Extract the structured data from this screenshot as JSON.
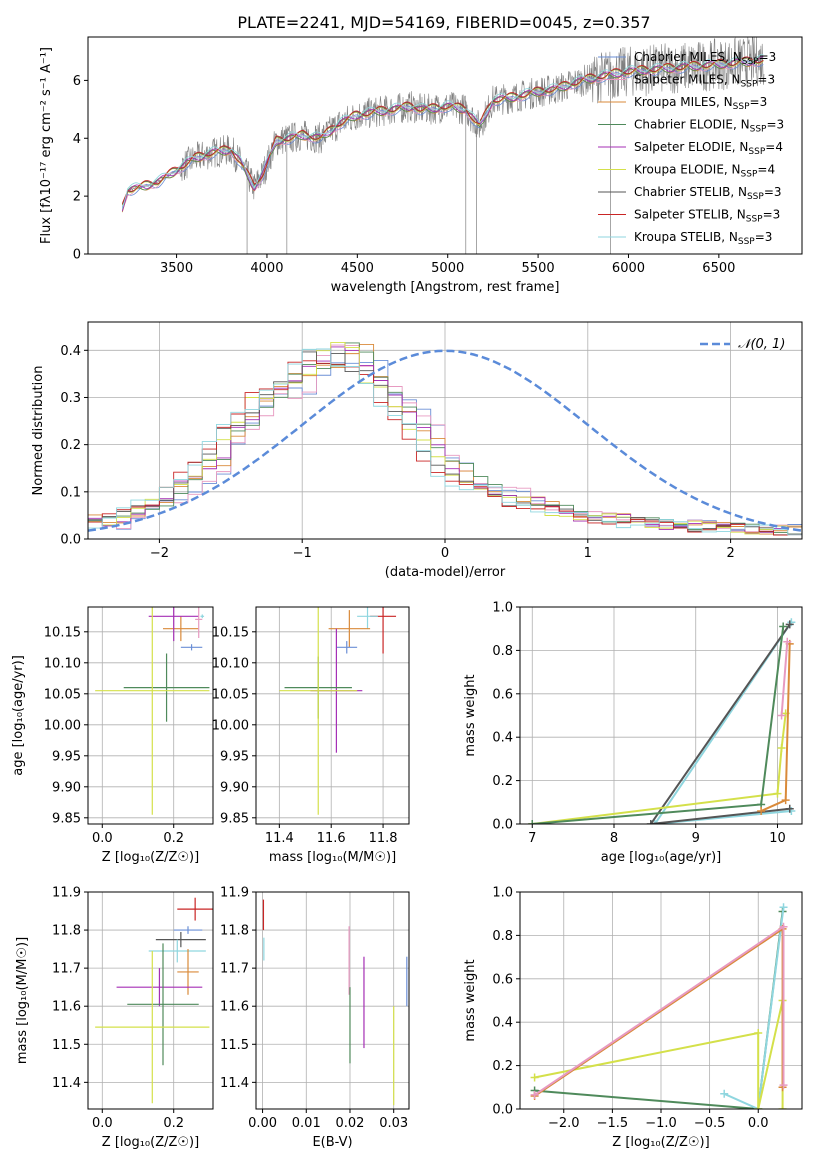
{
  "figure_title": "PLATE=2241, MJD=54169, FIBERID=0045, z=0.357",
  "colors": {
    "chabrier_miles": "#6b8fd6",
    "salpeter_miles": "#e79ac1",
    "kroupa_miles": "#d98a3a",
    "chabrier_elodie": "#4f8a5b",
    "salpeter_elodie": "#a52fb5",
    "kroupa_elodie": "#d4e04a",
    "chabrier_stelib": "#555555",
    "salpeter_stelib": "#c92525",
    "kroupa_stelib": "#8fd6df",
    "data": "#808080",
    "normal": "#5b8bd9"
  },
  "legend_spectrum": [
    {
      "prefix": "Chabrier MILES, N",
      "sub": "SSP",
      "suffix": "=3",
      "color_key": "chabrier_miles"
    },
    {
      "prefix": "Salpeter MILES, N",
      "sub": "SSP",
      "suffix": "=3",
      "color_key": "salpeter_miles"
    },
    {
      "prefix": "Kroupa MILES, N",
      "sub": "SSP",
      "suffix": "=3",
      "color_key": "kroupa_miles"
    },
    {
      "prefix": "Chabrier ELODIE, N",
      "sub": "SSP",
      "suffix": "=3",
      "color_key": "chabrier_elodie"
    },
    {
      "prefix": "Salpeter ELODIE, N",
      "sub": "SSP",
      "suffix": "=4",
      "color_key": "salpeter_elodie"
    },
    {
      "prefix": "Kroupa ELODIE, N",
      "sub": "SSP",
      "suffix": "=4",
      "color_key": "kroupa_elodie"
    },
    {
      "prefix": "Chabrier STELIB, N",
      "sub": "SSP",
      "suffix": "=3",
      "color_key": "chabrier_stelib"
    },
    {
      "prefix": "Salpeter STELIB, N",
      "sub": "SSP",
      "suffix": "=3",
      "color_key": "salpeter_stelib"
    },
    {
      "prefix": "Kroupa STELIB, N",
      "sub": "SSP",
      "suffix": "=3",
      "color_key": "kroupa_stelib"
    }
  ],
  "legend_normal": "𝒩(0, 1)",
  "chart_data": [
    {
      "id": "spectrum",
      "type": "line",
      "xlabel": "wavelength [Angstrom, rest frame]",
      "ylabel": "Flux [fλ10⁻¹⁷ erg cm⁻² s⁻¹ A⁻¹]",
      "xlim": [
        3010,
        6960
      ],
      "ylim": [
        0,
        7.5
      ],
      "xticks": [
        3500,
        4000,
        4500,
        5000,
        5500,
        6000,
        6500
      ],
      "yticks": [
        0,
        2,
        4,
        6
      ],
      "grid": false,
      "legend": "upper right",
      "continuum": [
        [
          3200,
          1.6
        ],
        [
          3230,
          2.2
        ],
        [
          3300,
          2.3
        ],
        [
          3400,
          2.5
        ],
        [
          3500,
          2.9
        ],
        [
          3600,
          3.3
        ],
        [
          3700,
          3.5
        ],
        [
          3800,
          3.6
        ],
        [
          3850,
          3.2
        ],
        [
          3930,
          2.3
        ],
        [
          3980,
          2.8
        ],
        [
          4050,
          3.9
        ],
        [
          4200,
          4.1
        ],
        [
          4300,
          4.0
        ],
        [
          4400,
          4.5
        ],
        [
          4500,
          4.8
        ],
        [
          4600,
          4.9
        ],
        [
          4700,
          5.0
        ],
        [
          4800,
          5.1
        ],
        [
          4850,
          5.0
        ],
        [
          4900,
          5.0
        ],
        [
          5000,
          5.1
        ],
        [
          5100,
          5.0
        ],
        [
          5175,
          4.4
        ],
        [
          5250,
          5.3
        ],
        [
          5350,
          5.4
        ],
        [
          5500,
          5.6
        ],
        [
          5600,
          5.7
        ],
        [
          5750,
          6.0
        ],
        [
          5900,
          6.2
        ],
        [
          6000,
          6.3
        ],
        [
          6200,
          6.4
        ],
        [
          6400,
          6.5
        ],
        [
          6600,
          6.6
        ],
        [
          6750,
          6.7
        ]
      ]
    },
    {
      "id": "residuals",
      "type": "histogram",
      "xlabel": "(data-model)/error",
      "ylabel": "Normed distribution",
      "xlim": [
        -2.5,
        2.5
      ],
      "ylim": [
        0,
        0.46
      ],
      "xticks": [
        -2,
        -1,
        0,
        1,
        2
      ],
      "yticks": [
        0.0,
        0.1,
        0.2,
        0.3,
        0.4
      ],
      "grid": true,
      "legend": "upper right",
      "bin_width": 0.1,
      "mean_profile": [
        0.04,
        0.035,
        0.03,
        0.04,
        0.045,
        0.055,
        0.06,
        0.07,
        0.07,
        0.075,
        0.08,
        0.095,
        0.11,
        0.12,
        0.135,
        0.15,
        0.15,
        0.17,
        0.19,
        0.23,
        0.235,
        0.24,
        0.26,
        0.29,
        0.3,
        0.31,
        0.32,
        0.33,
        0.33,
        0.34,
        0.36,
        0.37,
        0.38,
        0.385,
        0.38,
        0.4,
        0.38,
        0.38,
        0.37,
        0.35,
        0.33,
        0.31,
        0.3,
        0.28,
        0.26,
        0.24,
        0.23,
        0.2,
        0.18,
        0.16,
        0.15,
        0.13,
        0.12,
        0.11,
        0.11,
        0.1,
        0.1,
        0.095,
        0.08,
        0.075,
        0.08,
        0.075,
        0.07,
        0.065,
        0.06,
        0.06,
        0.055,
        0.05,
        0.048,
        0.047,
        0.045,
        0.04,
        0.042,
        0.04,
        0.038,
        0.035,
        0.037,
        0.035,
        0.033,
        0.03,
        0.032,
        0.03,
        0.03,
        0.028,
        0.027,
        0.025,
        0.026,
        0.025,
        0.024,
        0.023,
        0.022,
        0.022,
        0.021,
        0.02,
        0.02,
        0.02,
        0.019,
        0.018,
        0.018,
        0.017
      ],
      "normal_curve": {
        "mu": 0,
        "sigma": 1
      }
    },
    {
      "id": "age-vs-z",
      "type": "scatter",
      "xlabel": "Z [log₁₀(Z/Z☉)]",
      "ylabel": "age  [log₁₀(age/yr)]",
      "xlim": [
        -0.04,
        0.31
      ],
      "ylim": [
        9.84,
        10.19
      ],
      "xticks": [
        0.0,
        0.2
      ],
      "yticks": [
        9.85,
        9.9,
        9.95,
        10.0,
        10.05,
        10.1,
        10.15
      ],
      "grid": true,
      "points": [
        {
          "x": 0.28,
          "y": 10.175,
          "xerr": 0.005,
          "yerr": 0.003,
          "color_key": "kroupa_stelib"
        },
        {
          "x": 0.25,
          "y": 10.125,
          "xerr": 0.03,
          "yerr": 0.005,
          "color_key": "chabrier_miles"
        },
        {
          "x": 0.22,
          "y": 10.155,
          "xerr": 0.05,
          "yerr": 0.02,
          "color_key": "kroupa_miles"
        },
        {
          "x": 0.2,
          "y": 10.175,
          "xerr": 0.07,
          "yerr": 0.04,
          "color_key": "salpeter_elodie"
        },
        {
          "x": 0.18,
          "y": 10.06,
          "xerr": 0.12,
          "yerr": 0.055,
          "color_key": "chabrier_elodie"
        },
        {
          "x": 0.14,
          "y": 10.055,
          "xerr": 0.16,
          "yerr": 0.2,
          "color_key": "kroupa_elodie"
        },
        {
          "x": 0.27,
          "y": 10.17,
          "xerr": 0.01,
          "yerr": 0.03,
          "color_key": "salpeter_miles"
        }
      ]
    },
    {
      "id": "age-vs-mass",
      "type": "scatter",
      "xlabel": "mass [log₁₀(M/M☉)]",
      "ylabel": "",
      "xlim": [
        11.31,
        11.9
      ],
      "ylim": [
        9.84,
        10.19
      ],
      "xticks": [
        11.4,
        11.6,
        11.8
      ],
      "yticks": [
        9.85,
        9.9,
        9.95,
        10.0,
        10.05,
        10.1,
        10.15
      ],
      "grid": true,
      "points": [
        {
          "x": 11.8,
          "y": 10.175,
          "xerr": 0.05,
          "yerr": 0.06,
          "color_key": "salpeter_stelib"
        },
        {
          "x": 11.74,
          "y": 10.175,
          "xerr": 0.04,
          "yerr": 0.02,
          "color_key": "kroupa_stelib"
        },
        {
          "x": 11.67,
          "y": 10.155,
          "xerr": 0.08,
          "yerr": 0.03,
          "color_key": "kroupa_miles"
        },
        {
          "x": 11.66,
          "y": 10.125,
          "xerr": 0.04,
          "yerr": 0.01,
          "color_key": "chabrier_miles"
        },
        {
          "x": 11.62,
          "y": 10.055,
          "xerr": 0.1,
          "yerr": 0.1,
          "color_key": "salpeter_elodie"
        },
        {
          "x": 11.55,
          "y": 10.06,
          "xerr": 0.13,
          "yerr": 0.05,
          "color_key": "chabrier_elodie"
        },
        {
          "x": 11.55,
          "y": 10.055,
          "xerr": 0.15,
          "yerr": 0.2,
          "color_key": "kroupa_elodie"
        }
      ]
    },
    {
      "id": "mass-weight-vs-age",
      "type": "line",
      "xlabel": "age  [log₁₀(age/yr)]",
      "ylabel": "mass weight",
      "xlim": [
        6.85,
        10.3
      ],
      "ylim": [
        0,
        1
      ],
      "xticks": [
        7,
        8,
        9,
        10
      ],
      "yticks": [
        0.0,
        0.2,
        0.4,
        0.6,
        0.8,
        1.0
      ],
      "grid": true,
      "series": [
        {
          "color_key": "kroupa_stelib",
          "x": [
            10.17,
            8.5,
            10.17
          ],
          "y": [
            0.06,
            0.0,
            0.93
          ]
        },
        {
          "color_key": "chabrier_stelib",
          "x": [
            10.15,
            8.45,
            10.15
          ],
          "y": [
            0.07,
            0.0,
            0.92
          ]
        },
        {
          "color_key": "kroupa_elodie",
          "x": [
            7.0,
            10.0,
            10.05,
            10.1
          ],
          "y": [
            0.0,
            0.14,
            0.35,
            0.51
          ]
        },
        {
          "color_key": "chabrier_elodie",
          "x": [
            7.0,
            9.8,
            10.07
          ],
          "y": [
            0.0,
            0.09,
            0.91
          ]
        },
        {
          "color_key": "kroupa_miles",
          "x": [
            9.8,
            10.1,
            10.15
          ],
          "y": [
            0.06,
            0.11,
            0.83
          ]
        },
        {
          "color_key": "salpeter_miles",
          "x": [
            10.05,
            10.12
          ],
          "y": [
            0.5,
            0.84
          ]
        }
      ]
    },
    {
      "id": "mass-vs-z",
      "type": "scatter",
      "xlabel": "Z [log₁₀(Z/Z☉)]",
      "ylabel": "mass [log₁₀(M/M☉)]",
      "xlim": [
        -0.04,
        0.31
      ],
      "ylim": [
        11.33,
        11.9
      ],
      "xticks": [
        0.0,
        0.2
      ],
      "yticks": [
        11.4,
        11.5,
        11.6,
        11.7,
        11.8,
        11.9
      ],
      "grid": true,
      "points": [
        {
          "x": 0.26,
          "y": 11.855,
          "xerr": 0.05,
          "yerr": 0.03,
          "color_key": "salpeter_stelib"
        },
        {
          "x": 0.24,
          "y": 11.8,
          "xerr": 0.04,
          "yerr": 0.01,
          "color_key": "chabrier_miles"
        },
        {
          "x": 0.22,
          "y": 11.775,
          "xerr": 0.07,
          "yerr": 0.02,
          "color_key": "chabrier_stelib"
        },
        {
          "x": 0.21,
          "y": 11.745,
          "xerr": 0.08,
          "yerr": 0.03,
          "color_key": "kroupa_stelib"
        },
        {
          "x": 0.24,
          "y": 11.69,
          "xerr": 0.03,
          "yerr": 0.06,
          "color_key": "kroupa_miles"
        },
        {
          "x": 0.16,
          "y": 11.65,
          "xerr": 0.12,
          "yerr": 0.05,
          "color_key": "salpeter_elodie"
        },
        {
          "x": 0.17,
          "y": 11.605,
          "xerr": 0.1,
          "yerr": 0.16,
          "color_key": "chabrier_elodie"
        },
        {
          "x": 0.14,
          "y": 11.545,
          "xerr": 0.16,
          "yerr": 0.2,
          "color_key": "kroupa_elodie"
        }
      ]
    },
    {
      "id": "mass-vs-ebv",
      "type": "scatter",
      "xlabel": "E(B-V)",
      "ylabel": "",
      "xlim": [
        -0.0015,
        0.0335
      ],
      "ylim": [
        11.33,
        11.9
      ],
      "xticks": [
        0.0,
        0.01,
        0.02,
        0.03
      ],
      "yticks": [
        11.4,
        11.5,
        11.6,
        11.7,
        11.8,
        11.9
      ],
      "grid": true,
      "points": [
        {
          "x": 0.0002,
          "y": 11.84,
          "xerr": 0,
          "yerr": 0.04,
          "color_key": "salpeter_stelib"
        },
        {
          "x": 0.0003,
          "y": 11.75,
          "xerr": 0,
          "yerr": 0.03,
          "color_key": "kroupa_stelib"
        },
        {
          "x": 0.0198,
          "y": 11.72,
          "xerr": 0,
          "yerr": 0.09,
          "color_key": "salpeter_miles"
        },
        {
          "x": 0.02,
          "y": 11.55,
          "xerr": 0,
          "yerr": 0.1,
          "color_key": "chabrier_elodie"
        },
        {
          "x": 0.0232,
          "y": 11.61,
          "xerr": 0,
          "yerr": 0.12,
          "color_key": "salpeter_elodie"
        },
        {
          "x": 0.03,
          "y": 11.47,
          "xerr": 0,
          "yerr": 0.13,
          "color_key": "kroupa_elodie"
        },
        {
          "x": 0.033,
          "y": 11.665,
          "xerr": 0,
          "yerr": 0.065,
          "color_key": "chabrier_miles"
        }
      ]
    },
    {
      "id": "mass-weight-vs-z",
      "type": "line",
      "xlabel": "Z [log₁₀(Z/Z☉)]",
      "ylabel": "mass weight",
      "xlim": [
        -2.45,
        0.45
      ],
      "ylim": [
        0,
        1
      ],
      "xticks": [
        -2.0,
        -1.5,
        -1.0,
        -0.5,
        0.0
      ],
      "yticks": [
        0.0,
        0.2,
        0.4,
        0.6,
        0.8,
        1.0
      ],
      "grid": true,
      "series": [
        {
          "color_key": "chabrier_elodie",
          "x": [
            -2.3,
            0.0,
            0.25
          ],
          "y": [
            0.085,
            0.0,
            0.91
          ]
        },
        {
          "color_key": "kroupa_stelib",
          "x": [
            -0.35,
            0.0,
            0.26
          ],
          "y": [
            0.07,
            0.0,
            0.93
          ]
        },
        {
          "color_key": "kroupa_elodie",
          "x": [
            -2.3,
            0.0,
            0.0,
            0.25,
            0.25
          ],
          "y": [
            0.145,
            0.35,
            0.0,
            0.5,
            0.0
          ]
        },
        {
          "color_key": "kroupa_miles",
          "x": [
            -2.3,
            0.25,
            0.25
          ],
          "y": [
            0.06,
            0.83,
            0.1
          ]
        },
        {
          "color_key": "salpeter_miles",
          "x": [
            -2.3,
            0.26,
            0.26
          ],
          "y": [
            0.065,
            0.84,
            0.11
          ]
        }
      ]
    }
  ]
}
